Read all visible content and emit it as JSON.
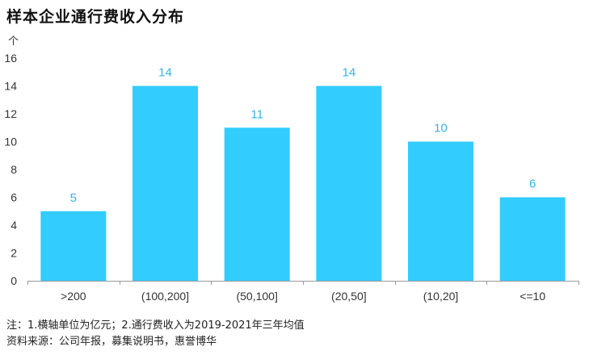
{
  "title": "样本企业通行费收入分布",
  "unit_label": "个",
  "notes": [
    "注：1.横轴单位为亿元；2.通行费收入为2019-2021年三年均值",
    "资料来源：公司年报，募集说明书，惠誉博华"
  ],
  "colors": {
    "bar": "#33CCFF",
    "data_label": "#33B5E5",
    "axis": "#999999",
    "text": "#333333"
  },
  "chart_data": {
    "type": "bar",
    "title": "样本企业通行费收入分布",
    "xlabel": "",
    "ylabel": "个",
    "categories": [
      ">200",
      "(100,200]",
      "(50,100]",
      "(20,50]",
      "(10,20]",
      "<=10"
    ],
    "values": [
      5,
      14,
      11,
      14,
      10,
      6
    ],
    "ylim": [
      0,
      16
    ],
    "yticks": [
      0,
      2,
      4,
      6,
      8,
      10,
      12,
      14,
      16
    ],
    "grid": false,
    "data_labels": true
  }
}
